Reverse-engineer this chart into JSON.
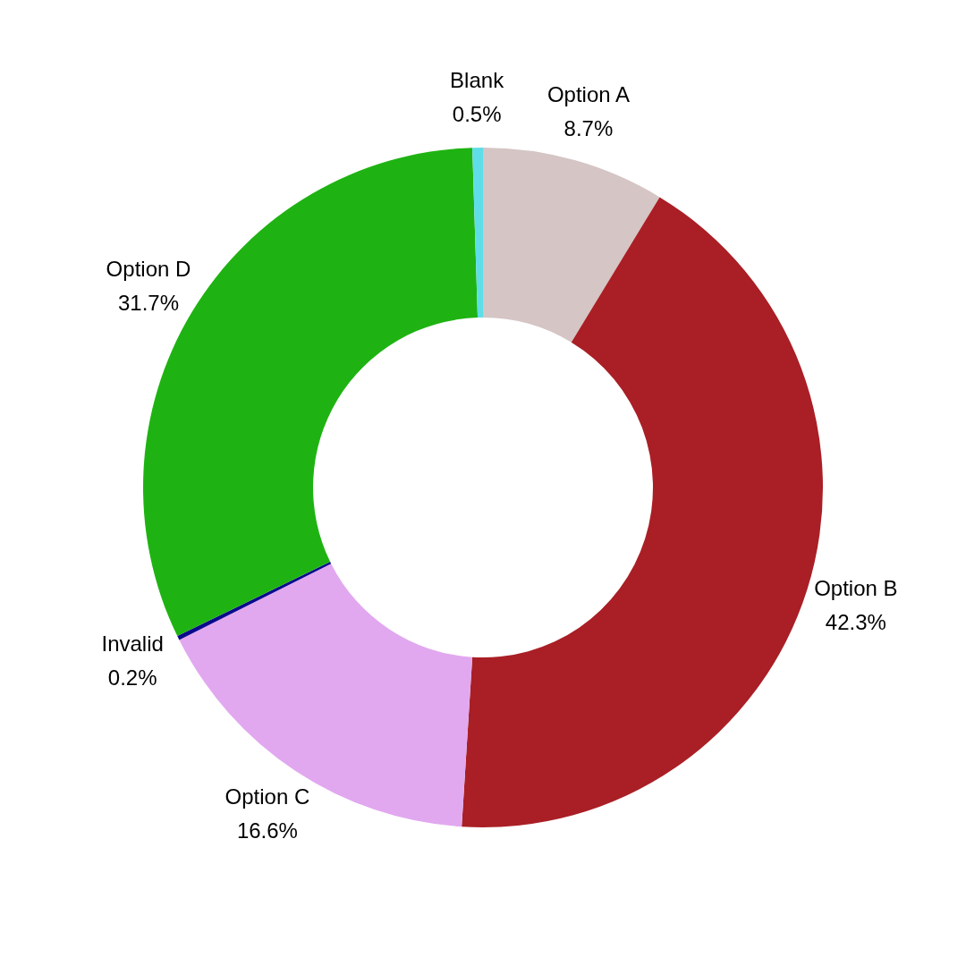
{
  "chart_data": {
    "type": "donut",
    "categories": [
      "Option A",
      "Option B",
      "Option C",
      "Invalid",
      "Option D",
      "Blank"
    ],
    "values": [
      8.7,
      42.3,
      16.6,
      0.2,
      31.7,
      0.5
    ],
    "colors": [
      "#d5c5c5",
      "#a91f25",
      "#e1a8ef",
      "#0a0a8c",
      "#1eb312",
      "#5fdde8"
    ],
    "value_labels": [
      "8.7%",
      "42.3%",
      "16.6%",
      "0.2%",
      "31.7%",
      "0.5%"
    ]
  }
}
